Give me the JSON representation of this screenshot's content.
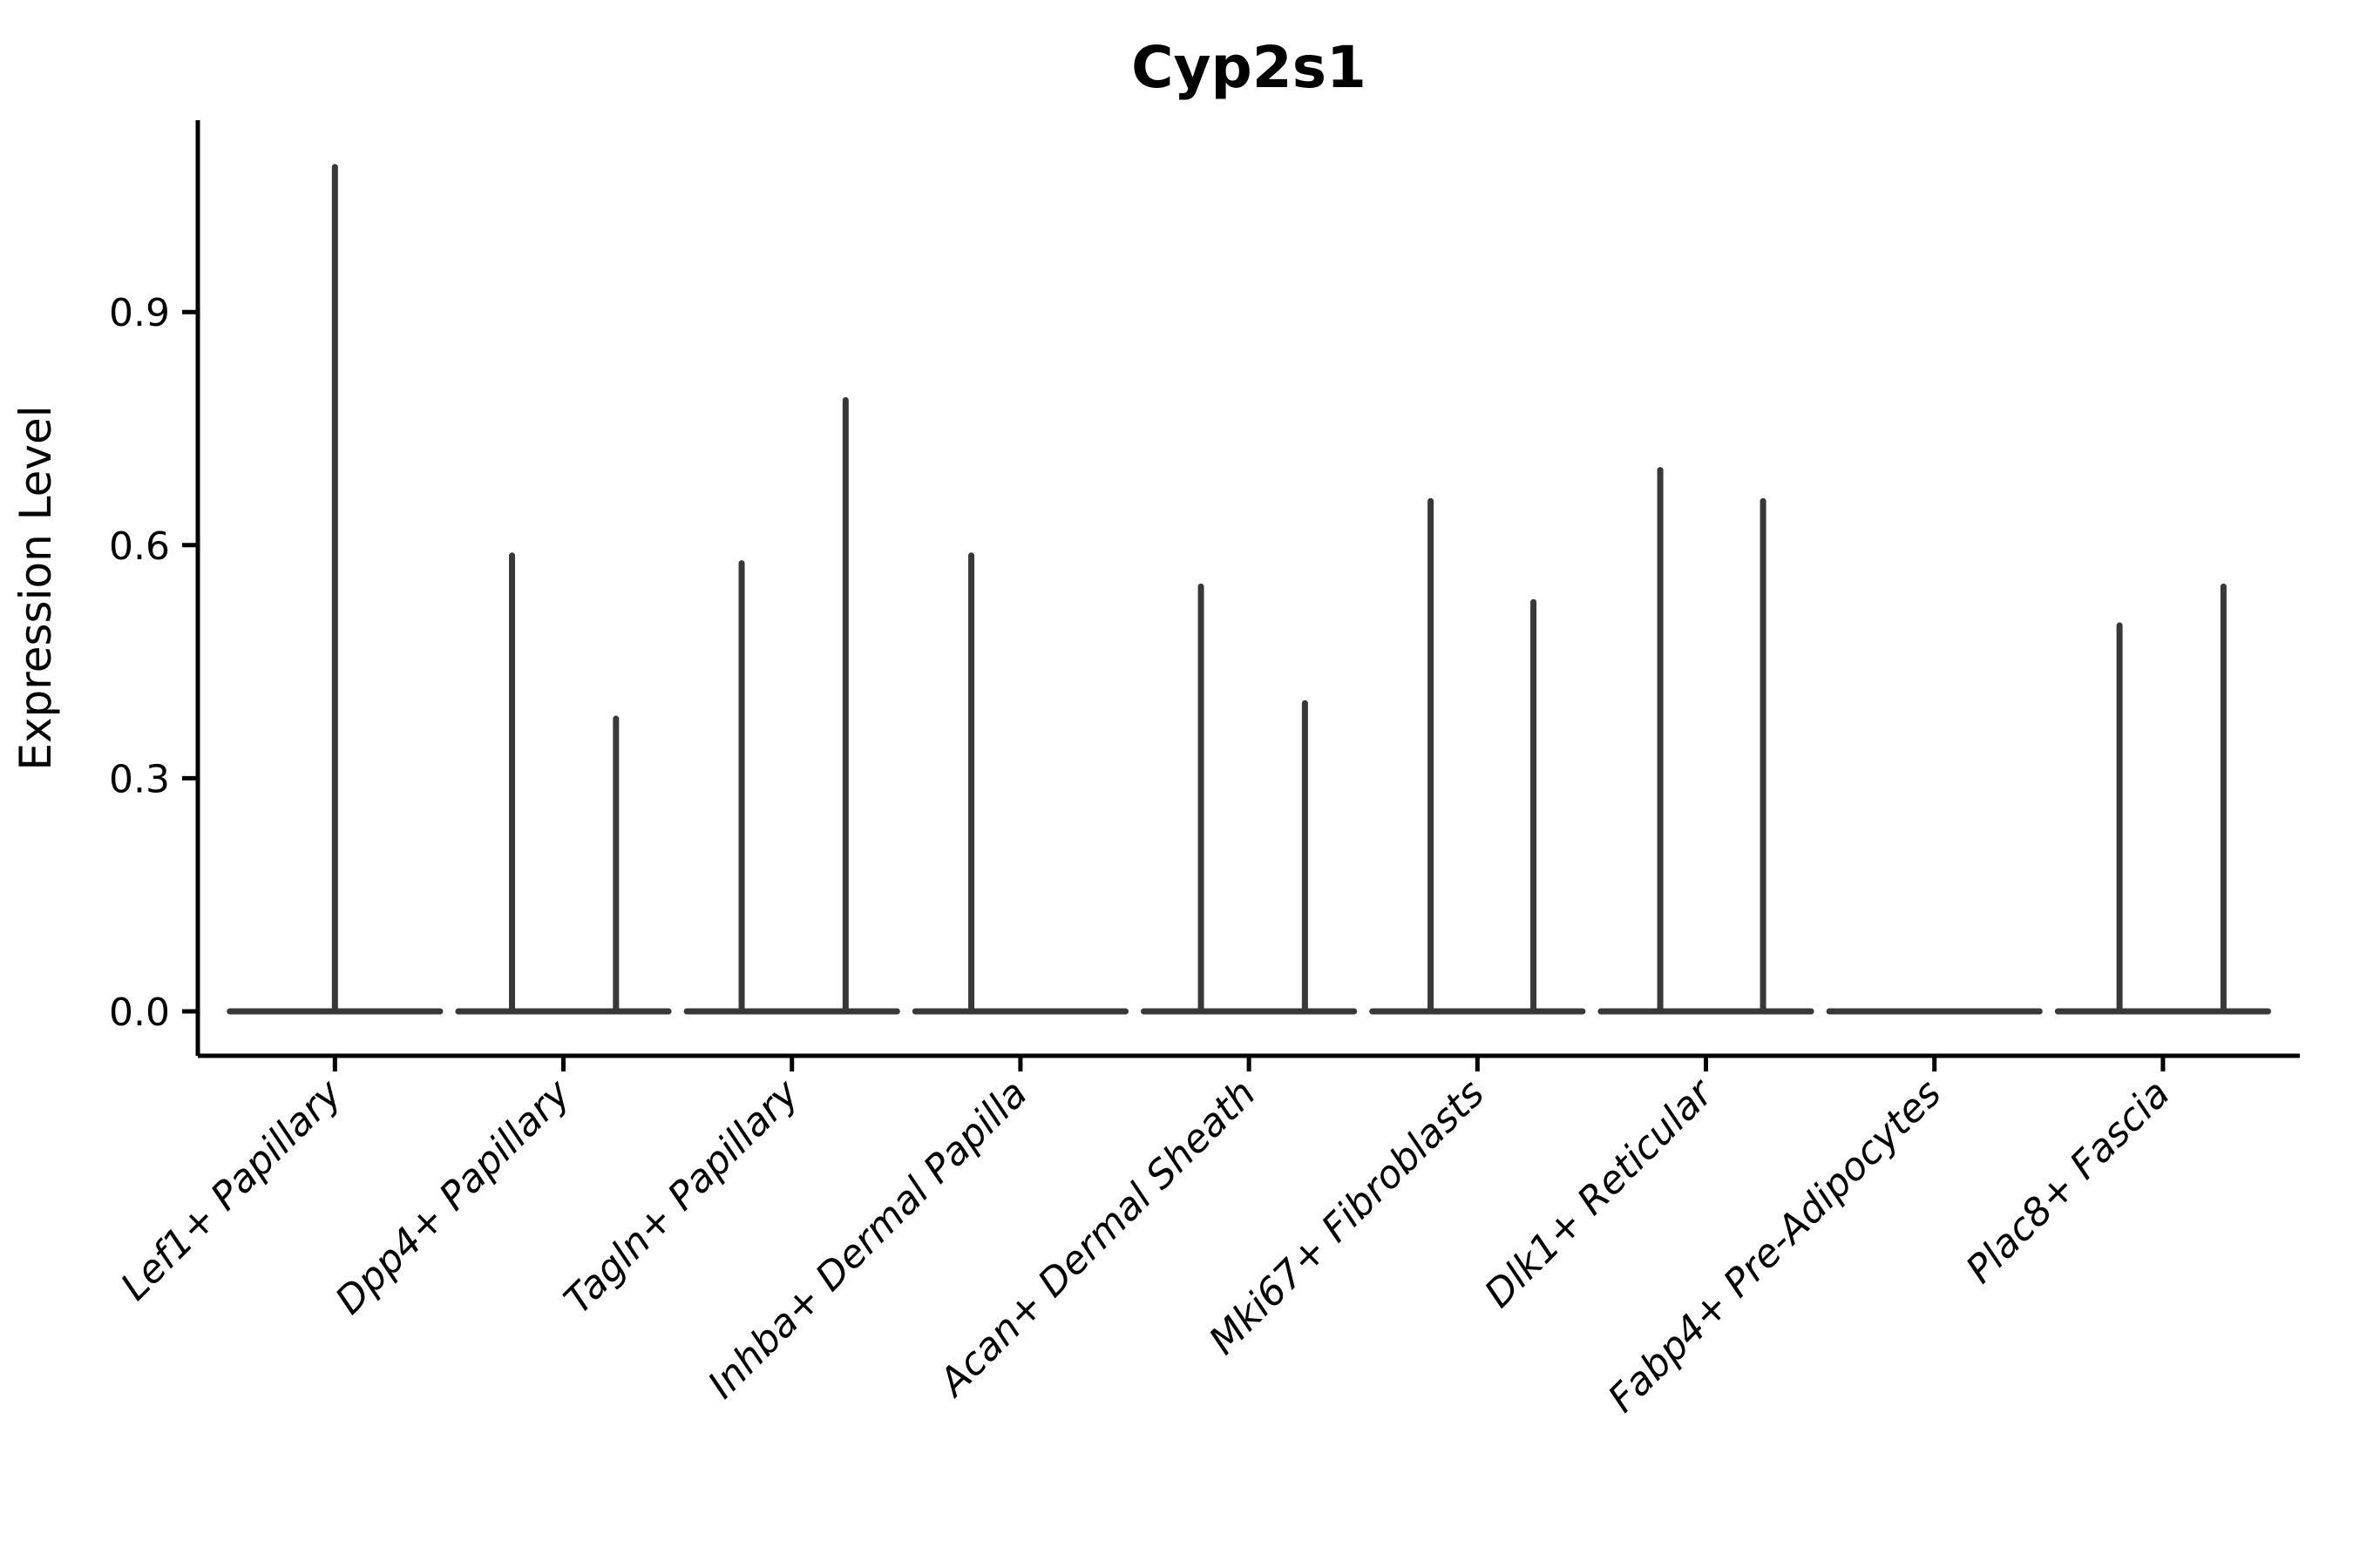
{
  "chart_data": {
    "type": "violin",
    "title": "Cyp2s1",
    "ylabel": "Expression Level",
    "xlabel": "",
    "yticks": [
      0.0,
      0.3,
      0.6,
      0.9
    ],
    "ytick_labels": [
      "0.0",
      "0.3",
      "0.6",
      "0.9"
    ],
    "ylim": [
      -0.06,
      1.15
    ],
    "grid": false,
    "legend": "none",
    "categories": [
      "Lef1+ Papillary",
      "Dpp4+ Papillary",
      "Tagln+ Papillary",
      "Inhba+ Dermal Papilla",
      "Acan+ Dermal Sheath",
      "Mki67+ Fibroblasts",
      "Dlk1+ Reticular",
      "Fabp4+ Pre-Adipocytes",
      "Plac8+ Fascia"
    ],
    "violins": [
      {
        "category": "Lef1+ Papillary",
        "spikes": [
          {
            "offset": 0.0,
            "max": 1.09
          }
        ]
      },
      {
        "category": "Dpp4+ Papillary",
        "spikes": [
          {
            "offset": -0.225,
            "max": 0.59
          },
          {
            "offset": 0.23,
            "max": 0.38
          }
        ]
      },
      {
        "category": "Tagln+ Papillary",
        "spikes": [
          {
            "offset": -0.22,
            "max": 0.58
          },
          {
            "offset": 0.235,
            "max": 0.79
          }
        ]
      },
      {
        "category": "Inhba+ Dermal Papilla",
        "spikes": [
          {
            "offset": -0.215,
            "max": 0.59
          }
        ]
      },
      {
        "category": "Acan+ Dermal Sheath",
        "spikes": [
          {
            "offset": -0.21,
            "max": 0.55
          },
          {
            "offset": 0.245,
            "max": 0.4
          }
        ]
      },
      {
        "category": "Mki67+ Fibroblasts",
        "spikes": [
          {
            "offset": -0.205,
            "max": 0.66
          },
          {
            "offset": 0.245,
            "max": 0.53
          }
        ]
      },
      {
        "category": "Dlk1+ Reticular",
        "spikes": [
          {
            "offset": -0.2,
            "max": 0.7
          },
          {
            "offset": 0.25,
            "max": 0.66
          }
        ]
      },
      {
        "category": "Fabp4+ Pre-Adipocytes",
        "spikes": []
      },
      {
        "category": "Plac8+ Fascia",
        "spikes": [
          {
            "offset": -0.19,
            "max": 0.5
          },
          {
            "offset": 0.265,
            "max": 0.55
          }
        ]
      }
    ],
    "base_halfwidth": 0.46,
    "colors": {
      "violin_line": "#383838",
      "axis": "#000000",
      "text": "#000000",
      "background": "#ffffff"
    }
  }
}
